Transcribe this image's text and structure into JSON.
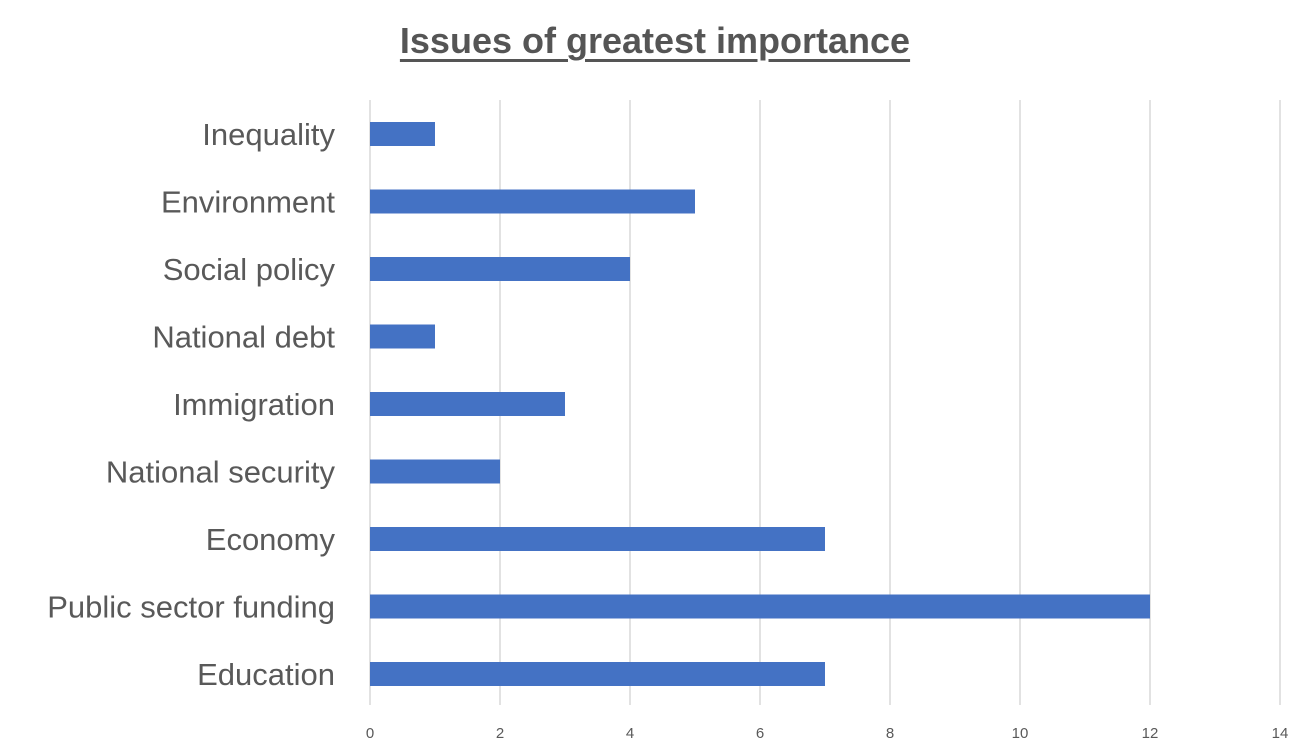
{
  "chart_data": {
    "type": "bar",
    "orientation": "horizontal",
    "title": "Issues of greatest importance",
    "xlabel": "",
    "ylabel": "",
    "categories": [
      "Inequality",
      "Environment",
      "Social policy",
      "National debt",
      "Immigration",
      "National security",
      "Economy",
      "Public sector funding",
      "Education"
    ],
    "values": [
      1,
      5,
      4,
      1,
      3,
      2,
      7,
      12,
      7
    ],
    "xlim": [
      0,
      14
    ],
    "xticks": [
      0,
      2,
      4,
      6,
      8,
      10,
      12,
      14
    ],
    "grid": "vertical",
    "legend": "none",
    "bar_color": "#4472c4"
  }
}
